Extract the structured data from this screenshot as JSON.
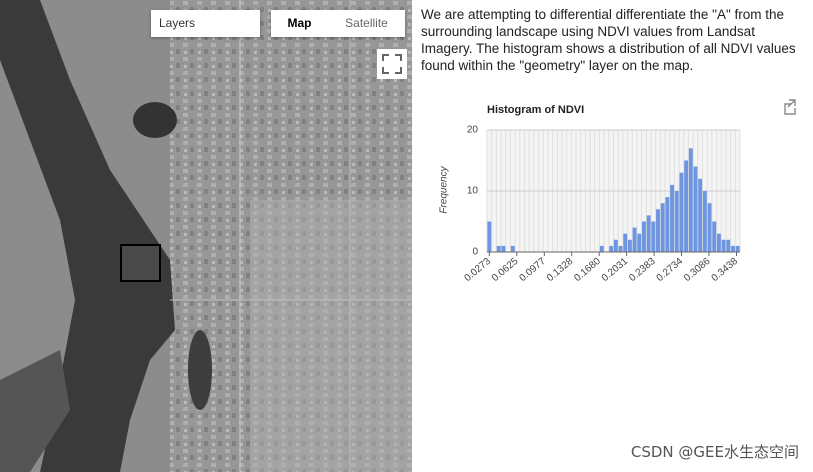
{
  "map": {
    "layers_label": "Layers",
    "map_button": "Map",
    "satellite_button": "Satellite"
  },
  "description": "We are attempting to differential differentiate the \"A\" from the surrounding landscape using NDVI values from Landsat Imagery. The histogram shows a distribution of all NDVI values found within the \"geometry\" layer on the map.",
  "chart_data": {
    "type": "histogram",
    "title": "Histogram of NDVI",
    "ylabel": "Frequency",
    "bins": [
      0.0243,
      0.0303,
      0.0363,
      0.0423,
      0.0483,
      0.0543,
      0.0603,
      0.0663,
      0.0723,
      0.0783,
      0.0843,
      0.0903,
      0.0963,
      0.1023,
      0.1083,
      0.1143,
      0.1203,
      0.1263,
      0.1323,
      0.1383,
      0.1443,
      0.1503,
      0.1563,
      0.1623,
      0.1683,
      0.1743,
      0.1803,
      0.1863,
      0.1923,
      0.1983,
      0.2043,
      0.2103,
      0.2163,
      0.2223,
      0.2283,
      0.2343,
      0.2403,
      0.2463,
      0.2523,
      0.2583,
      0.2643,
      0.2703,
      0.2763,
      0.2823,
      0.2883,
      0.2943,
      0.3003,
      0.3063,
      0.3123,
      0.3183,
      0.3243,
      0.3303,
      0.3363,
      0.3423,
      0.3483
    ],
    "values": [
      5,
      0,
      1,
      1,
      0,
      1,
      0,
      0,
      0,
      0,
      0,
      0,
      0,
      0,
      0,
      0,
      0,
      0,
      0,
      0,
      0,
      0,
      0,
      0,
      1,
      0,
      1,
      2,
      1,
      3,
      2,
      4,
      3,
      5,
      6,
      5,
      7,
      8,
      9,
      11,
      10,
      13,
      15,
      17,
      14,
      12,
      10,
      8,
      5,
      3,
      2,
      2,
      1,
      1
    ],
    "color": "#6d95e0",
    "xlim": [
      0.0243,
      0.3483
    ],
    "xticks": [
      0.0273,
      0.0625,
      0.0977,
      0.1328,
      {
        "value": 0.168,
        "label": "0.1680"
      },
      0.2031,
      0.2383,
      0.2734,
      0.3086,
      0.3438
    ],
    "ylim": [
      0,
      20
    ],
    "yticks": [
      0,
      10,
      20
    ],
    "grid": true
  },
  "watermark": "CSDN @GEE水生态空间"
}
